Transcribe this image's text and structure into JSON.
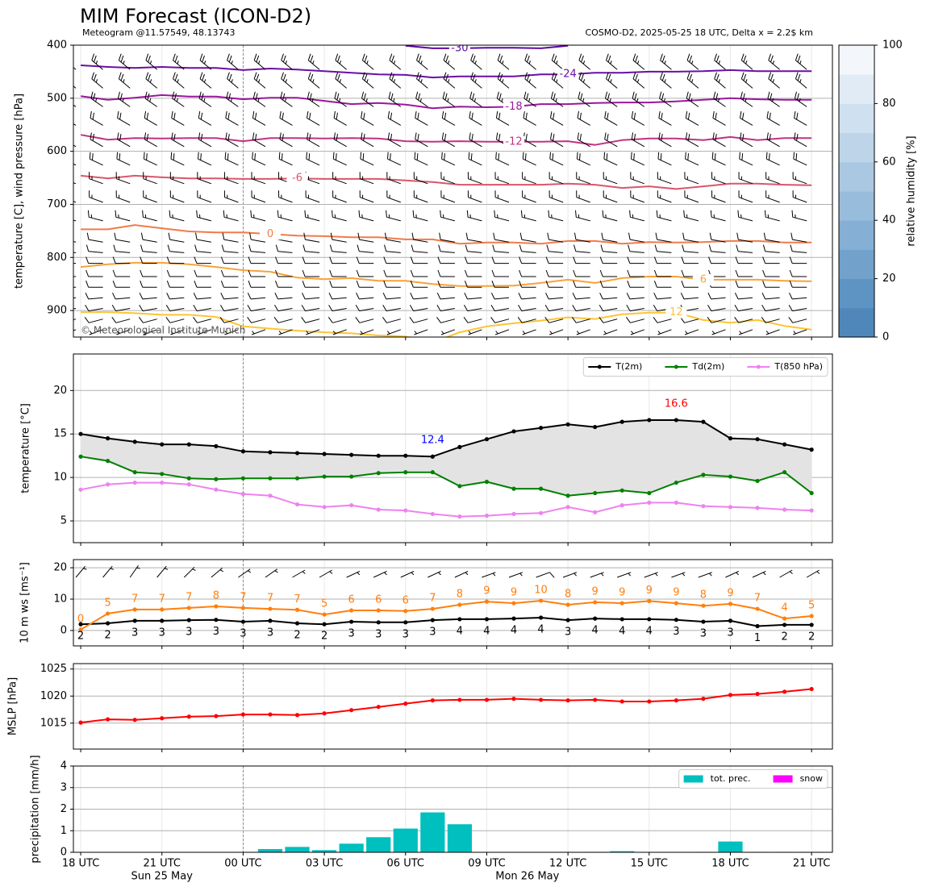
{
  "chart_data": [
    {
      "type": "contour",
      "title": "MIM Forecast (ICON-D2)",
      "subtitle": "Meteogram @11.57549, 48.13743",
      "source": "COSMO-D2, 2025-05-25 18 UTC, Delta x = 2.2$ km",
      "copyright": "© Meteorological Institute Munich",
      "ylabel": "temperature [C], wind pressure [hPa]",
      "x": [
        0,
        1,
        2,
        3,
        4,
        5,
        6,
        7,
        8,
        9,
        10,
        11,
        12,
        13,
        14,
        15,
        16,
        17,
        18,
        19,
        20,
        21,
        22,
        23,
        24,
        25,
        26,
        27
      ],
      "xlim": [
        -0.27,
        27.77
      ],
      "ylim": [
        950,
        400
      ],
      "yticks": [
        400,
        500,
        600,
        700,
        800,
        900
      ],
      "grid": true,
      "series": [
        {
          "name": "-30",
          "color": "#5c0ba0",
          "values": [
            null,
            null,
            null,
            null,
            null,
            null,
            null,
            null,
            null,
            null,
            null,
            null,
            401,
            406,
            406,
            405,
            405,
            406,
            401,
            null,
            null,
            null,
            null,
            null,
            null,
            null,
            null,
            null
          ]
        },
        {
          "name": "-24",
          "color": "#6a0fa3",
          "values": [
            438,
            441,
            443,
            441,
            443,
            443,
            447,
            444,
            446,
            449,
            452,
            455,
            456,
            461,
            459,
            459,
            459,
            455,
            455,
            452,
            452,
            450,
            450,
            449,
            447,
            449,
            449,
            449
          ]
        },
        {
          "name": "-18",
          "color": "#9b179e",
          "values": [
            496,
            503,
            499,
            494,
            497,
            497,
            502,
            499,
            499,
            505,
            511,
            509,
            512,
            519,
            516,
            517,
            516,
            511,
            511,
            509,
            508,
            508,
            506,
            503,
            500,
            502,
            503,
            503
          ]
        },
        {
          "name": "-12",
          "color": "#c13282",
          "values": [
            569,
            578,
            575,
            576,
            575,
            575,
            581,
            575,
            575,
            576,
            575,
            576,
            581,
            582,
            581,
            582,
            582,
            582,
            581,
            588,
            579,
            576,
            576,
            579,
            573,
            579,
            575,
            575
          ]
        },
        {
          "name": "-6",
          "color": "#d9566a",
          "values": [
            646,
            651,
            646,
            649,
            651,
            651,
            652,
            652,
            651,
            652,
            652,
            652,
            655,
            658,
            663,
            663,
            663,
            663,
            661,
            663,
            669,
            666,
            671,
            666,
            661,
            661,
            663,
            664
          ]
        },
        {
          "name": "0",
          "color": "#f07b4a",
          "values": [
            747,
            747,
            739,
            745,
            751,
            753,
            753,
            756,
            759,
            760,
            762,
            762,
            766,
            766,
            774,
            772,
            772,
            774,
            769,
            769,
            774,
            771,
            772,
            771,
            769,
            769,
            772,
            772
          ]
        },
        {
          "name": "6",
          "color": "#f8a23a",
          "values": [
            818,
            813,
            810,
            810,
            813,
            818,
            824,
            827,
            838,
            841,
            839,
            844,
            844,
            850,
            854,
            854,
            853,
            848,
            842,
            848,
            839,
            836,
            836,
            842,
            842,
            842,
            844,
            845
          ]
        },
        {
          "name": "12",
          "color": "#fbc534",
          "values": [
            903,
            903,
            905,
            908,
            908,
            912,
            930,
            934,
            938,
            941,
            943,
            947,
            949,
            960,
            941,
            930,
            924,
            919,
            913,
            916,
            907,
            904,
            904,
            918,
            923,
            918,
            929,
            936
          ]
        }
      ],
      "barbs": {
        "levels": [
          440,
          475,
          510,
          545,
          585,
          620,
          655,
          690,
          725,
          765,
          785,
          805,
          830,
          850,
          870,
          890,
          910,
          930
        ],
        "speeds": [
          25,
          25,
          25,
          20,
          20,
          20,
          15,
          15,
          15,
          10,
          10,
          10,
          10,
          10,
          10,
          10,
          10,
          5
        ],
        "directions": [
          310,
          310,
          305,
          300,
          300,
          295,
          290,
          290,
          285,
          280,
          275,
          270,
          270,
          270,
          265,
          260,
          255,
          250
        ]
      },
      "colorbar": {
        "label": "relative humidity [%]",
        "lim": [
          0,
          100
        ],
        "ticks": [
          0,
          20,
          40,
          60,
          80,
          100
        ],
        "colors": [
          "#4f87bb",
          "#5e94c4",
          "#72a2cc",
          "#85afd4",
          "#98bcdb",
          "#abc8e2",
          "#bdd4e9",
          "#cfe0f0",
          "#e1ebf6",
          "#f3f7fc"
        ]
      }
    },
    {
      "type": "line",
      "ylabel": "temperature [°C]",
      "x": [
        0,
        1,
        2,
        3,
        4,
        5,
        6,
        7,
        8,
        9,
        10,
        11,
        12,
        13,
        14,
        15,
        16,
        17,
        18,
        19,
        20,
        21,
        22,
        23,
        24,
        25,
        26,
        27
      ],
      "xlim": [
        -0.27,
        27.77
      ],
      "ylim": [
        2.5,
        24.2
      ],
      "yticks": [
        5,
        10,
        15,
        20
      ],
      "grid": true,
      "fill": "#e3e3e3",
      "legend": "upper right",
      "series": [
        {
          "name": "T(2m)",
          "color": "#000000",
          "values": [
            15.0,
            14.5,
            14.1,
            13.8,
            13.8,
            13.6,
            13.0,
            12.9,
            12.8,
            12.7,
            12.6,
            12.5,
            12.5,
            12.4,
            13.5,
            14.4,
            15.3,
            15.7,
            16.1,
            15.8,
            16.4,
            16.6,
            16.6,
            16.4,
            14.5,
            14.4,
            13.8,
            13.2
          ]
        },
        {
          "name": "Td(2m)",
          "color": "#008000",
          "values": [
            12.4,
            11.9,
            10.6,
            10.4,
            9.9,
            9.8,
            9.9,
            9.9,
            9.9,
            10.1,
            10.1,
            10.5,
            10.6,
            10.6,
            9.0,
            9.5,
            8.7,
            8.7,
            7.9,
            8.2,
            8.5,
            8.2,
            9.4,
            10.3,
            10.1,
            9.6,
            10.6,
            8.2
          ]
        },
        {
          "name": "T(850 hPa)",
          "color": "#ee82ee",
          "values": [
            8.6,
            9.2,
            9.4,
            9.4,
            9.2,
            8.6,
            8.1,
            7.9,
            6.9,
            6.6,
            6.8,
            6.3,
            6.2,
            5.8,
            5.5,
            5.6,
            5.8,
            5.9,
            6.6,
            6.0,
            6.8,
            7.1,
            7.1,
            6.7,
            6.6,
            6.5,
            6.3,
            6.2
          ]
        }
      ],
      "annotations": [
        {
          "x": 13,
          "value": 12.4,
          "label": "12.4",
          "color": "#0000ff"
        },
        {
          "x": 22,
          "value": 16.6,
          "label": "16.6",
          "color": "#ff0000"
        }
      ]
    },
    {
      "type": "line",
      "ylabel": "10 m ws [ms⁻¹]",
      "x": [
        0,
        1,
        2,
        3,
        4,
        5,
        6,
        7,
        8,
        9,
        10,
        11,
        12,
        13,
        14,
        15,
        16,
        17,
        18,
        19,
        20,
        21,
        22,
        23,
        24,
        25,
        26,
        27
      ],
      "xlim": [
        -0.27,
        27.77
      ],
      "ylim": [
        -4.9,
        22.6
      ],
      "yticks": [
        0,
        10,
        20
      ],
      "grid": true,
      "series": [
        {
          "color": "#000000",
          "values": [
            2.0,
            2.3,
            3.1,
            3.1,
            3.3,
            3.4,
            2.8,
            3.1,
            2.3,
            2.0,
            2.8,
            2.6,
            2.6,
            3.3,
            3.6,
            3.6,
            3.8,
            4.1,
            3.3,
            3.8,
            3.6,
            3.6,
            3.4,
            2.8,
            3.1,
            1.4,
            1.8,
            1.8
          ],
          "value_labels": [
            "2",
            "2",
            "3",
            "3",
            "3",
            "3",
            "3",
            "3",
            "2",
            "2",
            "3",
            "3",
            "3",
            "3",
            "4",
            "4",
            "4",
            "4",
            "3",
            "4",
            "4",
            "4",
            "3",
            "3",
            "3",
            "1",
            "2",
            "2"
          ]
        },
        {
          "color": "#ff7f0e",
          "values": [
            0.3,
            5.4,
            6.7,
            6.7,
            7.2,
            7.7,
            7.2,
            6.9,
            6.6,
            5.1,
            6.4,
            6.4,
            6.2,
            6.9,
            8.2,
            9.2,
            8.7,
            9.5,
            8.2,
            9.0,
            8.7,
            9.4,
            8.7,
            7.9,
            8.5,
            6.9,
            3.8,
            4.6
          ],
          "value_labels": [
            "0",
            "5",
            "7",
            "7",
            "7",
            "8",
            "7",
            "7",
            "7",
            "5",
            "6",
            "6",
            "6",
            "7",
            "8",
            "9",
            "9",
            "10",
            "8",
            "9",
            "9",
            "9",
            "9",
            "8",
            "9",
            "7",
            "4",
            "5"
          ]
        }
      ],
      "barb_directions": [
        40,
        40,
        35,
        40,
        45,
        50,
        55,
        55,
        60,
        60,
        65,
        65,
        65,
        65,
        65,
        70,
        70,
        70,
        70,
        70,
        70,
        70,
        70,
        70,
        65,
        65,
        60,
        60
      ]
    },
    {
      "type": "line",
      "ylabel": "MSLP [hPa]",
      "x": [
        0,
        1,
        2,
        3,
        4,
        5,
        6,
        7,
        8,
        9,
        10,
        11,
        12,
        13,
        14,
        15,
        16,
        17,
        18,
        19,
        20,
        21,
        22,
        23,
        24,
        25,
        26,
        27
      ],
      "xlim": [
        -0.27,
        27.77
      ],
      "ylim": [
        1010.2,
        1026
      ],
      "yticks": [
        1015,
        1020,
        1025
      ],
      "grid": true,
      "series": [
        {
          "color": "#ff0000",
          "values": [
            1015.1,
            1015.7,
            1015.6,
            1015.9,
            1016.2,
            1016.3,
            1016.6,
            1016.6,
            1016.5,
            1016.8,
            1017.4,
            1018.0,
            1018.6,
            1019.2,
            1019.3,
            1019.3,
            1019.5,
            1019.3,
            1019.2,
            1019.3,
            1019.0,
            1019.0,
            1019.2,
            1019.5,
            1020.2,
            1020.4,
            1020.8,
            1021.3
          ]
        }
      ]
    },
    {
      "type": "bar",
      "ylabel": "precipitation [mm/h]",
      "x": [
        0,
        1,
        2,
        3,
        4,
        5,
        6,
        7,
        8,
        9,
        10,
        11,
        12,
        13,
        14,
        15,
        16,
        17,
        18,
        19,
        20,
        21,
        22,
        23,
        24,
        25,
        26,
        27
      ],
      "xlim": [
        -0.27,
        27.77
      ],
      "ylim": [
        0,
        4
      ],
      "yticks": [
        0,
        1,
        2,
        3,
        4
      ],
      "grid": true,
      "legend": "upper right",
      "series": [
        {
          "name": "tot. prec.",
          "color": "#00bfbf",
          "values": [
            0,
            0,
            0,
            0,
            0,
            0,
            0,
            0.15,
            0.25,
            0.1,
            0.4,
            0.7,
            1.1,
            1.85,
            1.3,
            0,
            0,
            0,
            0.02,
            0.02,
            0.05,
            0,
            0,
            0.02,
            0.5,
            0.02,
            0.02,
            0.02
          ]
        },
        {
          "name": "snow",
          "color": "#ff00ff",
          "values": [
            0,
            0,
            0,
            0,
            0,
            0,
            0,
            0,
            0,
            0,
            0,
            0,
            0,
            0,
            0,
            0,
            0,
            0,
            0,
            0,
            0,
            0,
            0,
            0,
            0,
            0,
            0,
            0
          ]
        }
      ],
      "xticks": [
        {
          "value": 0,
          "label": "18 UTC"
        },
        {
          "value": 3,
          "label": "21 UTC"
        },
        {
          "value": 6,
          "label": "00 UTC"
        },
        {
          "value": 9,
          "label": "03 UTC"
        },
        {
          "value": 12,
          "label": "06 UTC"
        },
        {
          "value": 15,
          "label": "09 UTC"
        },
        {
          "value": 18,
          "label": "12 UTC"
        },
        {
          "value": 21,
          "label": "15 UTC"
        },
        {
          "value": 24,
          "label": "18 UTC"
        },
        {
          "value": 27,
          "label": "21 UTC"
        }
      ],
      "date_labels": [
        {
          "value": 3,
          "label": "Sun 25 May"
        },
        {
          "value": 16.5,
          "label": "Mon 26 May"
        }
      ],
      "day_lines": [
        6
      ]
    }
  ]
}
